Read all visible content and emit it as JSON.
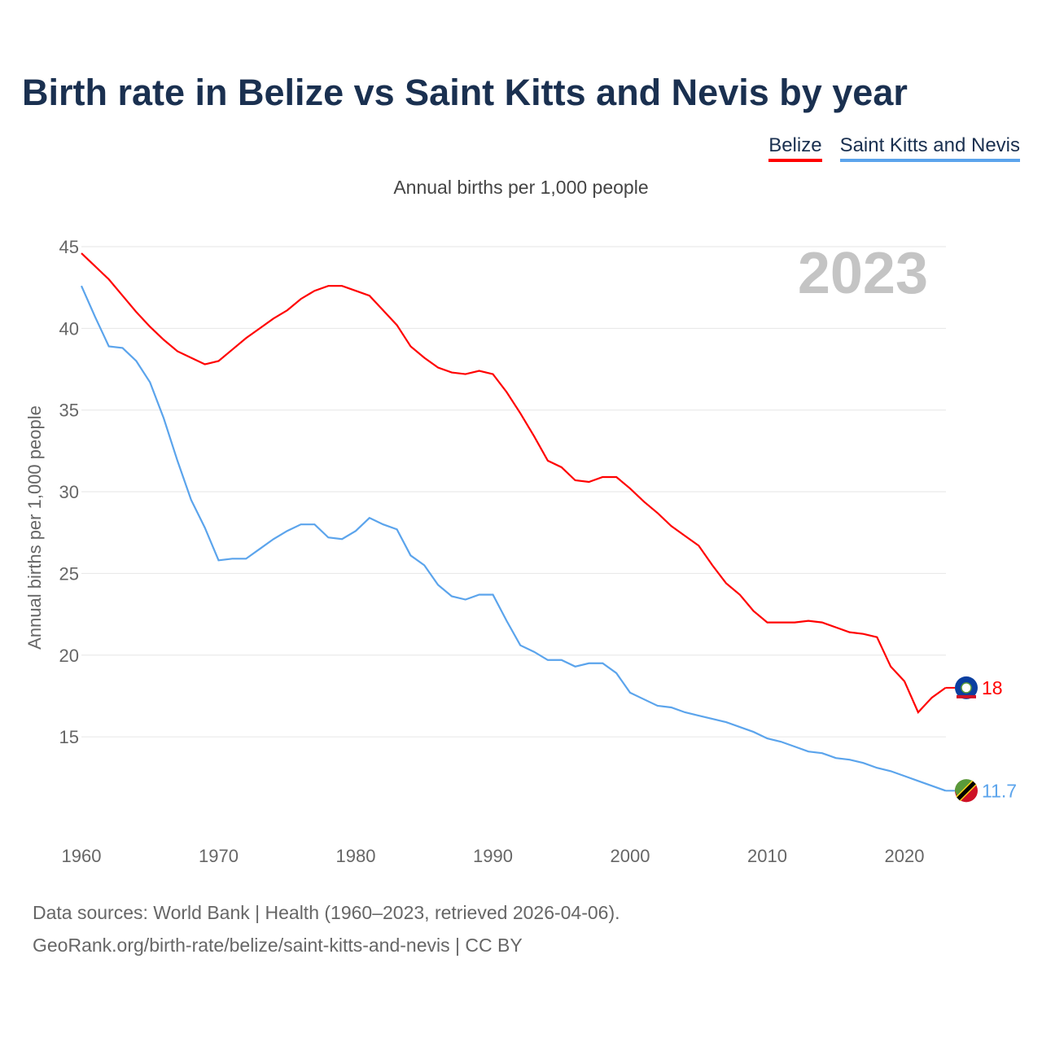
{
  "title": "Birth rate in Belize vs Saint Kitts and Nevis by year",
  "subtitle": "Annual births per 1,000 people",
  "source_line1": "Data sources: World Bank | Health (1960–2023, retrieved 2026-04-06).",
  "source_line2": "GeoRank.org/birth-rate/belize/saint-kitts-and-nevis | CC BY",
  "year_label": "2023",
  "chart_data": {
    "type": "line",
    "title": "Birth rate in Belize vs Saint Kitts and Nevis by year",
    "ylabel": "Annual births per 1,000 people",
    "xlabel": "",
    "xlim": [
      1960,
      2023
    ],
    "ylim": [
      10,
      45
    ],
    "yticks": [
      15,
      20,
      25,
      30,
      35,
      40,
      45
    ],
    "xticks": [
      1960,
      1970,
      1980,
      1990,
      2000,
      2010,
      2020
    ],
    "grid": true,
    "legend_placement": "top-right",
    "x_start": 1960,
    "series": [
      {
        "name": "Belize",
        "color": "#ff0000",
        "end_label": "18",
        "values": [
          44.6,
          43.8,
          43.0,
          42.0,
          41.0,
          40.1,
          39.3,
          38.6,
          38.2,
          37.8,
          38.0,
          38.7,
          39.4,
          40.0,
          40.6,
          41.1,
          41.8,
          42.3,
          42.6,
          42.6,
          42.3,
          42.0,
          41.1,
          40.2,
          38.9,
          38.2,
          37.6,
          37.3,
          37.2,
          37.4,
          37.2,
          36.1,
          34.8,
          33.4,
          31.9,
          31.5,
          30.7,
          30.6,
          30.9,
          30.9,
          30.2,
          29.4,
          28.7,
          27.9,
          27.3,
          26.7,
          25.5,
          24.4,
          23.7,
          22.7,
          22.0,
          22.0,
          22.0,
          22.1,
          22.0,
          21.7,
          21.4,
          21.3,
          21.1,
          19.3,
          18.4,
          16.5,
          17.4,
          18.0
        ]
      },
      {
        "name": "Saint Kitts and Nevis",
        "color": "#5ba4ec",
        "end_label": "11.7",
        "values": [
          42.6,
          40.7,
          38.9,
          38.8,
          38.0,
          36.7,
          34.5,
          31.9,
          29.5,
          27.8,
          25.8,
          25.9,
          25.9,
          26.5,
          27.1,
          27.6,
          28.0,
          28.0,
          27.2,
          27.1,
          27.6,
          28.4,
          28.0,
          27.7,
          26.1,
          25.5,
          24.3,
          23.6,
          23.4,
          23.7,
          23.7,
          22.1,
          20.6,
          20.2,
          19.7,
          19.7,
          19.3,
          19.5,
          19.5,
          18.9,
          17.7,
          17.3,
          16.9,
          16.8,
          16.5,
          16.3,
          16.1,
          15.9,
          15.6,
          15.3,
          14.9,
          14.7,
          14.4,
          14.1,
          14.0,
          13.7,
          13.6,
          13.4,
          13.1,
          12.9,
          12.6,
          12.3,
          12.0,
          11.7
        ]
      }
    ]
  }
}
